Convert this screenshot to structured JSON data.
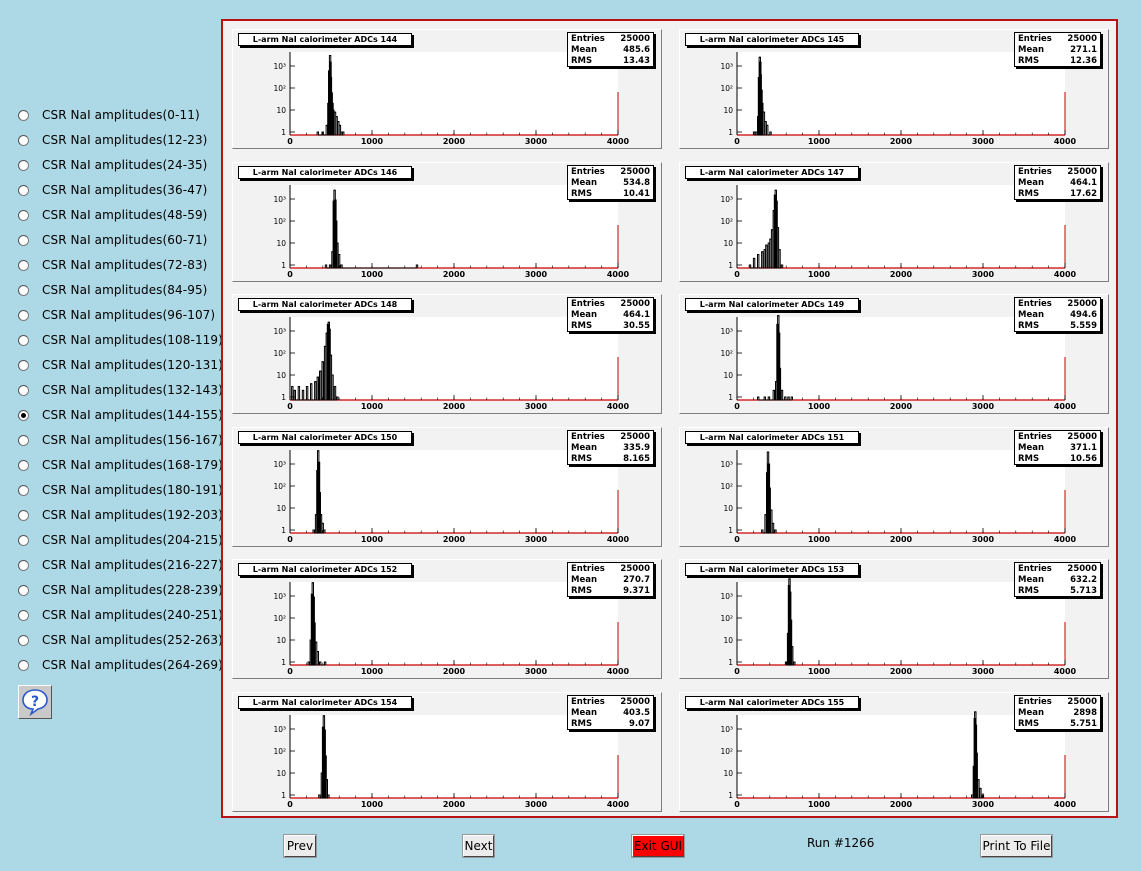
{
  "sidebar": {
    "selected_index": 12,
    "items": [
      {
        "label": "CSR NaI amplitudes(0-11)"
      },
      {
        "label": "CSR NaI amplitudes(12-23)"
      },
      {
        "label": "CSR NaI amplitudes(24-35)"
      },
      {
        "label": "CSR NaI amplitudes(36-47)"
      },
      {
        "label": "CSR NaI amplitudes(48-59)"
      },
      {
        "label": "CSR NaI amplitudes(60-71)"
      },
      {
        "label": "CSR NaI amplitudes(72-83)"
      },
      {
        "label": "CSR NaI amplitudes(84-95)"
      },
      {
        "label": "CSR NaI amplitudes(96-107)"
      },
      {
        "label": "CSR NaI amplitudes(108-119)"
      },
      {
        "label": "CSR NaI amplitudes(120-131)"
      },
      {
        "label": "CSR NaI amplitudes(132-143)"
      },
      {
        "label": "CSR NaI amplitudes(144-155)"
      },
      {
        "label": "CSR NaI amplitudes(156-167)"
      },
      {
        "label": "CSR NaI amplitudes(168-179)"
      },
      {
        "label": "CSR NaI amplitudes(180-191)"
      },
      {
        "label": "CSR NaI amplitudes(192-203)"
      },
      {
        "label": "CSR NaI amplitudes(204-215)"
      },
      {
        "label": "CSR NaI amplitudes(216-227)"
      },
      {
        "label": "CSR NaI amplitudes(228-239)"
      },
      {
        "label": "CSR NaI amplitudes(240-251)"
      },
      {
        "label": "CSR NaI amplitudes(252-263)"
      },
      {
        "label": "CSR NaI amplitudes(264-269)"
      }
    ]
  },
  "help_icon": "question-mark-bubble-icon",
  "buttons": {
    "prev_label": "Prev",
    "next_label": "Next",
    "exit_label": "Exit GUI",
    "print_label": "Print To File",
    "exit_color": "#ff0000"
  },
  "run_label": "Run #1266",
  "colors": {
    "background": "#add8e6",
    "canvas_border": "#b81414",
    "axis": "#cc0000",
    "pad": "#f2f2f2"
  },
  "stat_labels": {
    "entries": "Entries",
    "mean": "Mean",
    "rms": "RMS"
  },
  "chart_data": [
    {
      "type": "histogram",
      "title": "L-arm NaI calorimeter ADCs 144",
      "entries": "25000",
      "mean": "485.6",
      "rms": "13.43",
      "xlim": [
        0,
        4000
      ],
      "log_y": true,
      "x_ticks": [
        "0",
        "1000",
        "2000",
        "3000",
        "4000"
      ],
      "y_ticks": [
        "1",
        "10",
        "10²",
        "10³"
      ],
      "series": {
        "x": [
          330,
          390,
          440,
          460,
          470,
          480,
          485,
          490,
          500,
          510,
          520,
          540,
          560,
          580,
          600,
          620,
          640
        ],
        "y": [
          1,
          1,
          2,
          20,
          600,
          3000,
          1500,
          300,
          60,
          20,
          10,
          8,
          5,
          3,
          2,
          1,
          1
        ]
      }
    },
    {
      "type": "histogram",
      "title": "L-arm NaI calorimeter ADCs 145",
      "entries": "25000",
      "mean": "271.1",
      "rms": "12.36",
      "xlim": [
        0,
        4000
      ],
      "log_y": true,
      "x_ticks": [
        "0",
        "1000",
        "2000",
        "3000",
        "4000"
      ],
      "y_ticks": [
        "1",
        "10",
        "10²",
        "10³"
      ],
      "series": {
        "x": [
          200,
          230,
          250,
          260,
          270,
          275,
          280,
          290,
          300,
          320,
          340,
          360,
          400
        ],
        "y": [
          1,
          1,
          5,
          300,
          2500,
          1500,
          400,
          80,
          20,
          8,
          3,
          2,
          1
        ]
      }
    },
    {
      "type": "histogram",
      "title": "L-arm NaI calorimeter ADCs 146",
      "entries": "25000",
      "mean": "534.8",
      "rms": "10.41",
      "xlim": [
        0,
        4000
      ],
      "log_y": true,
      "x_ticks": [
        "0",
        "1000",
        "2000",
        "3000",
        "4000"
      ],
      "y_ticks": [
        "1",
        "10",
        "10²",
        "10³"
      ],
      "series": {
        "x": [
          430,
          480,
          510,
          525,
          535,
          545,
          555,
          570,
          590,
          620,
          1540
        ],
        "y": [
          1,
          1,
          4,
          800,
          2500,
          900,
          100,
          10,
          3,
          1,
          1
        ]
      }
    },
    {
      "type": "histogram",
      "title": "L-arm NaI calorimeter ADCs 147",
      "entries": "25000",
      "mean": "464.1",
      "rms": "17.62",
      "xlim": [
        0,
        4000
      ],
      "log_y": true,
      "x_ticks": [
        "0",
        "1000",
        "2000",
        "3000",
        "4000"
      ],
      "y_ticks": [
        "1",
        "10",
        "10²",
        "10³"
      ],
      "series": {
        "x": [
          150,
          200,
          250,
          300,
          330,
          350,
          380,
          400,
          420,
          440,
          455,
          465,
          475,
          490,
          510,
          540
        ],
        "y": [
          1,
          2,
          3,
          4,
          5,
          8,
          10,
          15,
          40,
          300,
          1500,
          2500,
          800,
          50,
          5,
          1
        ]
      }
    },
    {
      "type": "histogram",
      "title": "L-arm NaI calorimeter ADCs 148",
      "entries": "25000",
      "mean": "464.1",
      "rms": "30.55",
      "xlim": [
        0,
        4000
      ],
      "log_y": true,
      "x_ticks": [
        "0",
        "1000",
        "2000",
        "3000",
        "4000"
      ],
      "y_ticks": [
        "1",
        "10",
        "10²",
        "10³"
      ],
      "series": {
        "x": [
          20,
          50,
          100,
          150,
          200,
          250,
          300,
          330,
          360,
          390,
          420,
          440,
          455,
          465,
          475,
          490,
          510,
          540,
          570
        ],
        "y": [
          3,
          2,
          3,
          2,
          3,
          4,
          5,
          8,
          15,
          40,
          200,
          800,
          2000,
          2500,
          1200,
          80,
          10,
          3,
          1
        ]
      }
    },
    {
      "type": "histogram",
      "title": "L-arm NaI calorimeter ADCs 149",
      "entries": "25000",
      "mean": "494.6",
      "rms": "5.559",
      "xlim": [
        0,
        4000
      ],
      "log_y": true,
      "x_ticks": [
        "0",
        "1000",
        "2000",
        "3000",
        "4000"
      ],
      "y_ticks": [
        "1",
        "10",
        "10²",
        "10³"
      ],
      "series": {
        "x": [
          250,
          330,
          380,
          440,
          470,
          485,
          495,
          505,
          515,
          540,
          580,
          620,
          660
        ],
        "y": [
          1,
          1,
          1,
          2,
          5,
          2000,
          5000,
          800,
          20,
          2,
          1,
          1,
          1
        ]
      }
    },
    {
      "type": "histogram",
      "title": "L-arm NaI calorimeter ADCs 150",
      "entries": "25000",
      "mean": "335.9",
      "rms": "8.165",
      "xlim": [
        0,
        4000
      ],
      "log_y": true,
      "x_ticks": [
        "0",
        "1000",
        "2000",
        "3000",
        "4000"
      ],
      "y_ticks": [
        "1",
        "10",
        "10²",
        "10³"
      ],
      "series": {
        "x": [
          280,
          310,
          325,
          335,
          345,
          355,
          370,
          390,
          410
        ],
        "y": [
          1,
          5,
          500,
          4000,
          1200,
          50,
          5,
          2,
          1
        ]
      }
    },
    {
      "type": "histogram",
      "title": "L-arm NaI calorimeter ADCs 151",
      "entries": "25000",
      "mean": "371.1",
      "rms": "10.56",
      "xlim": [
        0,
        4000
      ],
      "log_y": true,
      "x_ticks": [
        "0",
        "1000",
        "2000",
        "3000",
        "4000"
      ],
      "y_ticks": [
        "1",
        "10",
        "10²",
        "10³"
      ],
      "series": {
        "x": [
          300,
          340,
          360,
          370,
          380,
          390,
          410,
          430,
          460
        ],
        "y": [
          1,
          5,
          400,
          3500,
          1000,
          80,
          8,
          2,
          1
        ]
      }
    },
    {
      "type": "histogram",
      "title": "L-arm NaI calorimeter ADCs 152",
      "entries": "25000",
      "mean": "270.7",
      "rms": "9.371",
      "xlim": [
        0,
        4000
      ],
      "log_y": true,
      "x_ticks": [
        "0",
        "1000",
        "2000",
        "3000",
        "4000"
      ],
      "y_ticks": [
        "1",
        "10",
        "10²",
        "10³"
      ],
      "series": {
        "x": [
          220,
          245,
          260,
          270,
          280,
          290,
          310,
          330,
          360,
          420
        ],
        "y": [
          1,
          10,
          1200,
          4000,
          900,
          60,
          8,
          3,
          1,
          1
        ]
      }
    },
    {
      "type": "histogram",
      "title": "L-arm NaI calorimeter ADCs 153",
      "entries": "25000",
      "mean": "632.2",
      "rms": "5.713",
      "xlim": [
        0,
        4000
      ],
      "log_y": true,
      "x_ticks": [
        "0",
        "1000",
        "2000",
        "3000",
        "4000"
      ],
      "y_ticks": [
        "1",
        "10",
        "10²",
        "10³"
      ],
      "series": {
        "x": [
          590,
          615,
          625,
          632,
          640,
          650,
          665,
          690
        ],
        "y": [
          1,
          20,
          3000,
          6000,
          1500,
          80,
          5,
          1
        ]
      }
    },
    {
      "type": "histogram",
      "title": "L-arm NaI calorimeter ADCs 154",
      "entries": "25000",
      "mean": "403.5",
      "rms": "9.07",
      "xlim": [
        0,
        4000
      ],
      "log_y": true,
      "x_ticks": [
        "0",
        "1000",
        "2000",
        "3000",
        "4000"
      ],
      "y_ticks": [
        "1",
        "10",
        "10²",
        "10³"
      ],
      "series": {
        "x": [
          350,
          380,
          395,
          405,
          415,
          425,
          440,
          460
        ],
        "y": [
          1,
          10,
          1200,
          4000,
          900,
          60,
          5,
          1
        ]
      }
    },
    {
      "type": "histogram",
      "title": "L-arm NaI calorimeter ADCs 155",
      "entries": "25000",
      "mean": "2898",
      "rms": "5.751",
      "xlim": [
        0,
        4000
      ],
      "log_y": true,
      "x_ticks": [
        "0",
        "1000",
        "2000",
        "3000",
        "4000"
      ],
      "y_ticks": [
        "1",
        "10",
        "10²",
        "10³"
      ],
      "series": {
        "x": [
          2860,
          2880,
          2892,
          2898,
          2905,
          2915,
          2935,
          2960,
          2990
        ],
        "y": [
          1,
          20,
          3000,
          6000,
          1500,
          80,
          5,
          2,
          1
        ]
      }
    }
  ]
}
